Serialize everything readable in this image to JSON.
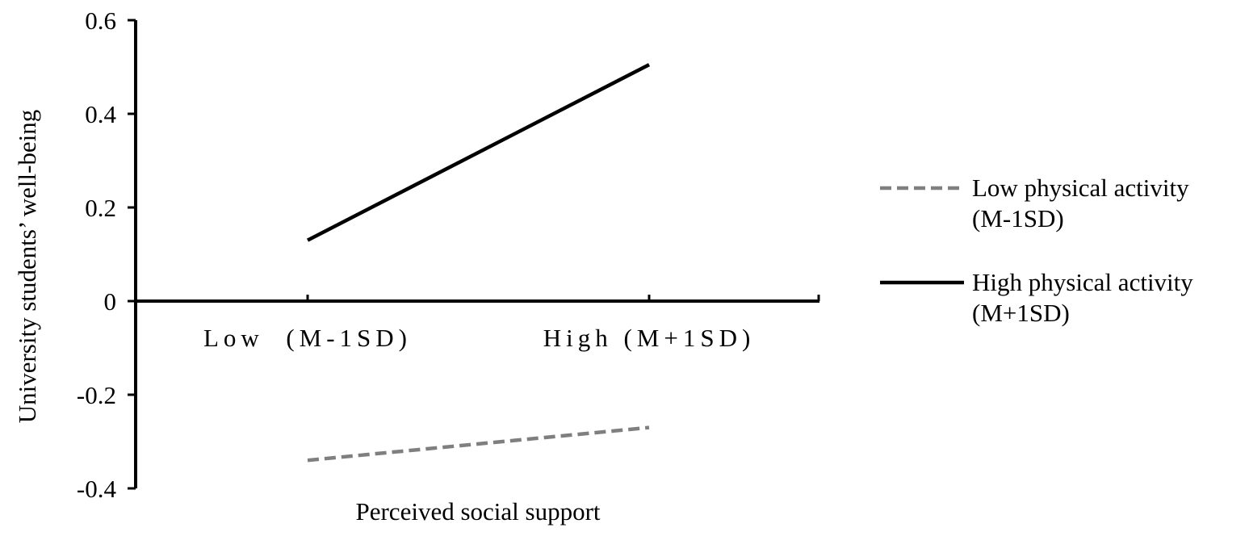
{
  "chart_data": {
    "type": "line",
    "title": "",
    "xlabel": "Perceived social support",
    "ylabel": "University students’ well-being",
    "categories": [
      "Low  (M-1SD)",
      "High (M+1SD)"
    ],
    "ylim": [
      -0.4,
      0.6
    ],
    "yticks": [
      "0.6",
      "0.4",
      "0.2",
      "0",
      "-0.2",
      "-0.4"
    ],
    "ytick_values": [
      0.6,
      0.4,
      0.2,
      0,
      -0.2,
      -0.4
    ],
    "grid": false,
    "legend_position": "right",
    "series": [
      {
        "name": "Low physical activity (M-1SD)",
        "name_lines": [
          "Low physical activity",
          "(M-1SD)"
        ],
        "values": [
          -0.34,
          -0.27
        ],
        "color": "#7f7f7f",
        "style": "dashed"
      },
      {
        "name": "High physical activity (M+1SD)",
        "name_lines": [
          "High physical activity",
          "(M+1SD)"
        ],
        "values": [
          0.13,
          0.505
        ],
        "color": "#000000",
        "style": "solid"
      }
    ]
  }
}
